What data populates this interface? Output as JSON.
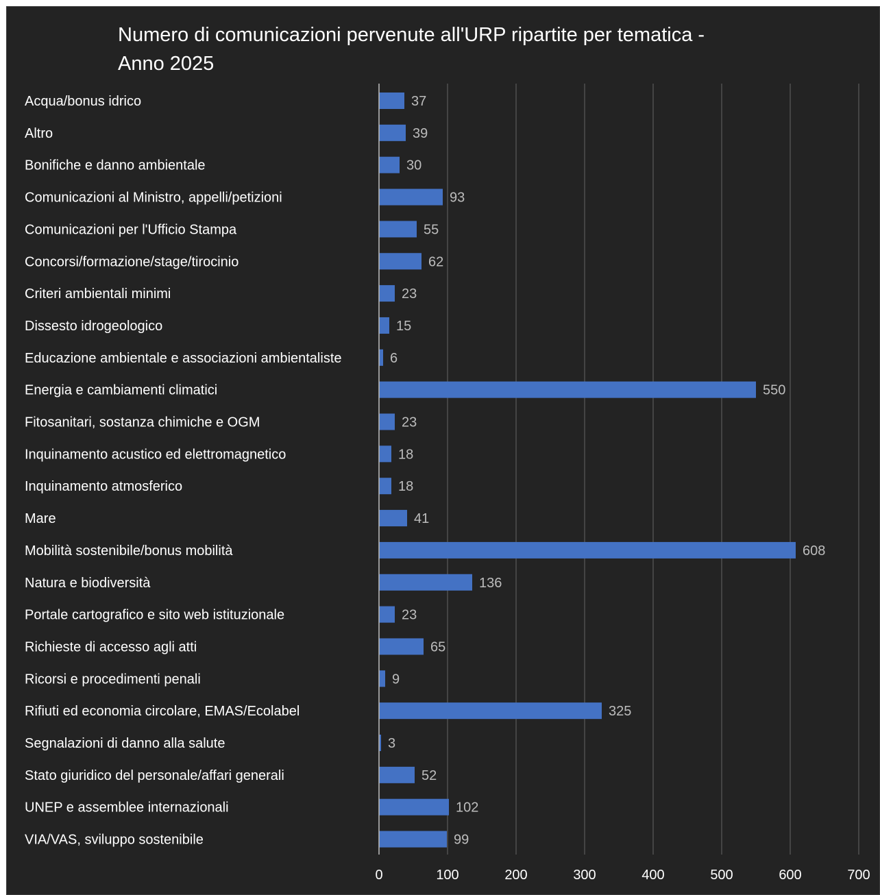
{
  "colors": {
    "background": "#232323",
    "bar": "#4472C4",
    "gridline": "#5a5a5a",
    "text": "#ffffff",
    "value_text": "#bdbdbd"
  },
  "chart_data": {
    "type": "bar",
    "orientation": "horizontal",
    "title": "Numero di comunicazioni pervenute all'URP ripartite per tematica - Anno 2025",
    "title_line1": "Numero di comunicazioni pervenute all'URP ripartite per tematica -",
    "title_line2": "Anno 2025",
    "xlabel": "",
    "ylabel": "",
    "xlim": [
      0,
      700
    ],
    "xticks": [
      "0",
      "100",
      "200",
      "300",
      "400",
      "500",
      "600",
      "700"
    ],
    "grid": true,
    "legend": "none",
    "categories": [
      "Acqua/bonus idrico",
      "Altro",
      "Bonifiche e danno ambientale",
      "Comunicazioni al Ministro, appelli/petizioni",
      "Comunicazioni per l'Ufficio Stampa",
      "Concorsi/formazione/stage/tirocinio",
      "Criteri ambientali minimi",
      "Dissesto idrogeologico",
      "Educazione ambientale e associazioni ambientaliste",
      "Energia e cambiamenti climatici",
      "Fitosanitari, sostanza chimiche e OGM",
      "Inquinamento acustico ed elettromagnetico",
      "Inquinamento atmosferico",
      "Mare",
      "Mobilità sostenibile/bonus mobilità",
      "Natura e biodiversità",
      "Portale cartografico e sito web istituzionale",
      "Richieste di accesso agli atti",
      "Ricorsi e procedimenti penali",
      "Rifiuti ed economia circolare, EMAS/Ecolabel",
      "Segnalazioni di danno alla salute",
      "Stato giuridico del personale/affari generali",
      "UNEP e assemblee internazionali",
      "VIA/VAS, sviluppo sostenibile"
    ],
    "values": [
      37,
      39,
      30,
      93,
      55,
      62,
      23,
      15,
      6,
      550,
      23,
      18,
      18,
      41,
      608,
      136,
      23,
      65,
      9,
      325,
      3,
      52,
      102,
      99
    ]
  }
}
